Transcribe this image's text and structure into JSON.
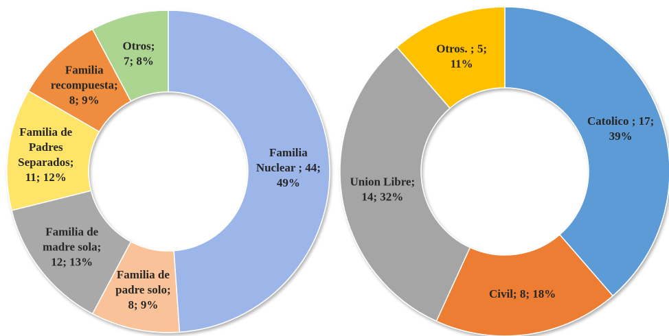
{
  "chart_data": [
    {
      "type": "donut",
      "values": [
        44,
        8,
        12,
        11,
        8,
        7
      ],
      "value_labels": [
        "Familia\nNuclear  ; 44;\n49%",
        "Familia de\npadre solo;\n8; 9%",
        "Familia de\nmadre sola;\n12; 13%",
        "Familia de\nPadres\nSeparados;\n11; 12%",
        "Familia\nrecompuesta;\n8; 9%",
        "Otros;\n7; 8%"
      ],
      "colors": [
        "#9db6ea",
        "#f9c298",
        "#a9a9a9",
        "#ffe46a",
        "#f08c3e",
        "#acd592"
      ]
    },
    {
      "type": "donut",
      "values": [
        17,
        8,
        14,
        5
      ],
      "value_labels": [
        "Catolico ; 17;\n39%",
        "Civil; 8; 18%",
        "Union Libre;\n14; 32%",
        "Otros. ; 5;\n11%"
      ],
      "colors": [
        "#5b9bd5",
        "#ed7d31",
        "#a5a5a5",
        "#ffc000"
      ]
    }
  ]
}
